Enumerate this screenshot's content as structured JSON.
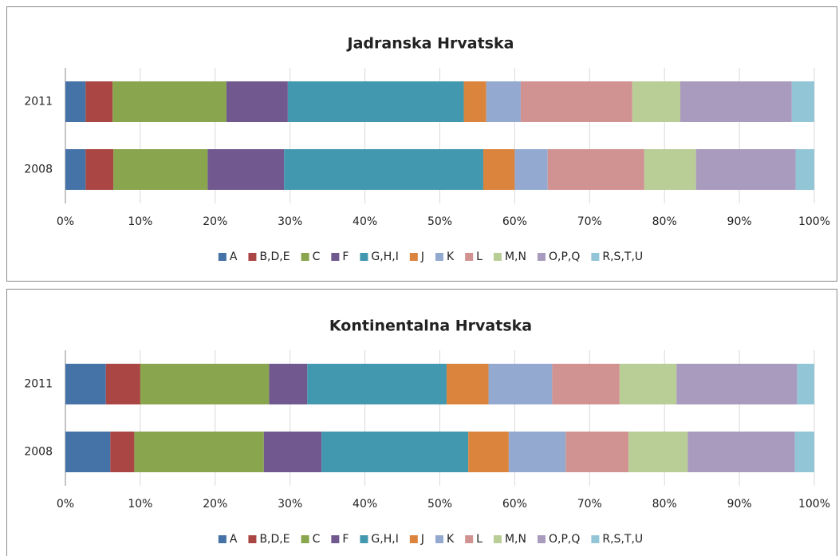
{
  "chart_data": [
    {
      "type": "stacked_bar_horizontal",
      "title": "Jadranska Hrvatska",
      "categories": [
        "2011",
        "2008"
      ],
      "xlim": [
        0,
        100
      ],
      "xticks": [
        {
          "value": 0,
          "label": "0%"
        },
        {
          "value": 10,
          "label": "10%"
        },
        {
          "value": 20,
          "label": "20%"
        },
        {
          "value": 30,
          "label": "30%"
        },
        {
          "value": 40,
          "label": "40%"
        },
        {
          "value": 50,
          "label": "50%"
        },
        {
          "value": 60,
          "label": "60%"
        },
        {
          "value": 70,
          "label": "70%"
        },
        {
          "value": 80,
          "label": "80%"
        },
        {
          "value": 90,
          "label": "90%"
        },
        {
          "value": 100,
          "label": "100%"
        }
      ],
      "grid": true,
      "legend": "bottom",
      "series": [
        {
          "name": "A",
          "color": "#4572a7",
          "values": [
            2.7,
            2.7
          ]
        },
        {
          "name": "B,D,E",
          "color": "#aa4643",
          "values": [
            3.6,
            3.7
          ]
        },
        {
          "name": "C",
          "color": "#89a54e",
          "values": [
            15.2,
            12.6
          ]
        },
        {
          "name": "F",
          "color": "#71588f",
          "values": [
            8.2,
            10.2
          ]
        },
        {
          "name": "G,H,I",
          "color": "#4198af",
          "values": [
            23.5,
            26.6
          ]
        },
        {
          "name": "J",
          "color": "#db843d",
          "values": [
            3.0,
            4.2
          ]
        },
        {
          "name": "K",
          "color": "#93a9cf",
          "values": [
            4.6,
            4.4
          ]
        },
        {
          "name": "L",
          "color": "#d19392",
          "values": [
            14.9,
            12.9
          ]
        },
        {
          "name": "M,N",
          "color": "#b9cd96",
          "values": [
            6.4,
            6.9
          ]
        },
        {
          "name": "O,P,Q",
          "color": "#a99bbd",
          "values": [
            14.9,
            13.3
          ]
        },
        {
          "name": "R,S,T,U",
          "color": "#92c5d6",
          "values": [
            3.0,
            2.5
          ]
        }
      ]
    },
    {
      "type": "stacked_bar_horizontal",
      "title": "Kontinentalna Hrvatska",
      "categories": [
        "2011",
        "2008"
      ],
      "xlim": [
        0,
        100
      ],
      "xticks": [
        {
          "value": 0,
          "label": "0%"
        },
        {
          "value": 10,
          "label": "10%"
        },
        {
          "value": 20,
          "label": "20%"
        },
        {
          "value": 30,
          "label": "30%"
        },
        {
          "value": 40,
          "label": "40%"
        },
        {
          "value": 50,
          "label": "50%"
        },
        {
          "value": 60,
          "label": "60%"
        },
        {
          "value": 70,
          "label": "70%"
        },
        {
          "value": 80,
          "label": "80%"
        },
        {
          "value": 90,
          "label": "90%"
        },
        {
          "value": 100,
          "label": "100%"
        }
      ],
      "grid": true,
      "legend": "bottom",
      "series": [
        {
          "name": "A",
          "color": "#4572a7",
          "values": [
            5.4,
            6.0
          ]
        },
        {
          "name": "B,D,E",
          "color": "#aa4643",
          "values": [
            4.6,
            3.2
          ]
        },
        {
          "name": "C",
          "color": "#89a54e",
          "values": [
            17.2,
            17.3
          ]
        },
        {
          "name": "F",
          "color": "#71588f",
          "values": [
            5.1,
            7.7
          ]
        },
        {
          "name": "G,H,I",
          "color": "#4198af",
          "values": [
            18.6,
            19.6
          ]
        },
        {
          "name": "J",
          "color": "#db843d",
          "values": [
            5.6,
            5.4
          ]
        },
        {
          "name": "K",
          "color": "#93a9cf",
          "values": [
            8.5,
            7.6
          ]
        },
        {
          "name": "L",
          "color": "#d19392",
          "values": [
            9.0,
            8.4
          ]
        },
        {
          "name": "M,N",
          "color": "#b9cd96",
          "values": [
            7.6,
            7.9
          ]
        },
        {
          "name": "O,P,Q",
          "color": "#a99bbd",
          "values": [
            16.1,
            14.3
          ]
        },
        {
          "name": "R,S,T,U",
          "color": "#92c5d6",
          "values": [
            2.3,
            2.6
          ]
        }
      ]
    }
  ]
}
